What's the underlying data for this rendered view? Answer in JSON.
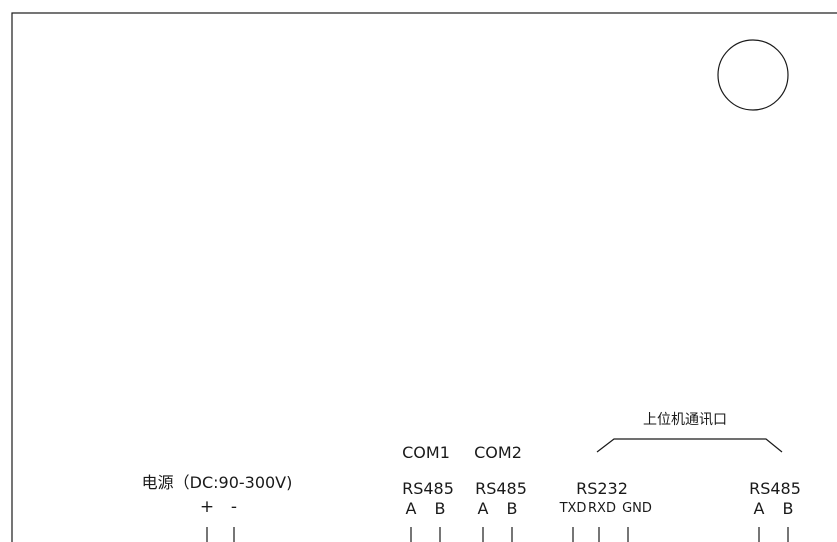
{
  "diagram": {
    "title_cn": "上位机通讯口",
    "power": {
      "label": "电源（DC:90-300V)",
      "plus": "+",
      "minus": "-"
    },
    "com1": {
      "name": "COM1",
      "protocol": "RS485",
      "pin_a": "A",
      "pin_b": "B"
    },
    "com2": {
      "name": "COM2",
      "protocol": "RS485",
      "pin_a": "A",
      "pin_b": "B"
    },
    "host_rs232": {
      "protocol": "RS232",
      "txd": "TXD",
      "rxd": "RXD",
      "gnd": "GND"
    },
    "host_rs485": {
      "protocol": "RS485",
      "pin_a": "A",
      "pin_b": "B"
    }
  }
}
